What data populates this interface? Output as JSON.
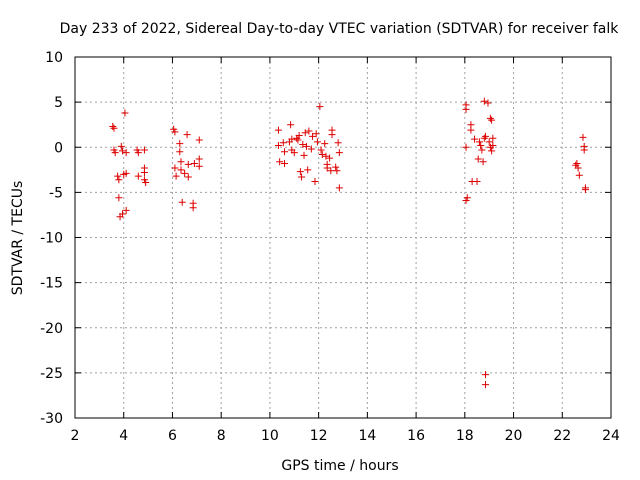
{
  "chart_data": {
    "type": "scatter",
    "title": "Day 233 of 2022, Sidereal Day-to-day VTEC variation (SDTVAR) for receiver falk",
    "xlabel": "GPS time / hours",
    "ylabel": "SDTVAR / TECUs",
    "xlim": [
      2,
      24
    ],
    "ylim": [
      -30,
      10
    ],
    "xticks": [
      2,
      4,
      6,
      8,
      10,
      12,
      14,
      16,
      18,
      20,
      22,
      24
    ],
    "yticks": [
      10,
      5,
      0,
      -5,
      -10,
      -15,
      -20,
      -25,
      -30
    ],
    "grid": true,
    "marker": "+",
    "color": "#dd0000",
    "series": [
      {
        "name": "SDTVAR",
        "points": [
          [
            3.55,
            2.3
          ],
          [
            3.6,
            2.1
          ],
          [
            3.6,
            -0.3
          ],
          [
            3.65,
            -0.6
          ],
          [
            3.75,
            -3.2
          ],
          [
            3.8,
            -3.6
          ],
          [
            3.8,
            -5.6
          ],
          [
            3.85,
            -7.7
          ],
          [
            3.9,
            0.1
          ],
          [
            3.95,
            -0.4
          ],
          [
            3.95,
            -7.4
          ],
          [
            4.0,
            -3.0
          ],
          [
            4.05,
            3.8
          ],
          [
            4.1,
            -2.9
          ],
          [
            4.1,
            -7.0
          ],
          [
            4.1,
            -0.6
          ],
          [
            4.55,
            -0.3
          ],
          [
            4.6,
            -3.2
          ],
          [
            4.6,
            -0.6
          ],
          [
            4.85,
            -0.3
          ],
          [
            4.85,
            -2.3
          ],
          [
            4.85,
            -2.8
          ],
          [
            4.85,
            -3.6
          ],
          [
            4.9,
            -3.9
          ],
          [
            6.05,
            2.0
          ],
          [
            6.1,
            1.7
          ],
          [
            6.1,
            -2.3
          ],
          [
            6.15,
            -3.2
          ],
          [
            6.3,
            0.4
          ],
          [
            6.3,
            -0.5
          ],
          [
            6.35,
            -1.6
          ],
          [
            6.35,
            -2.5
          ],
          [
            6.4,
            -6.1
          ],
          [
            6.5,
            -2.9
          ],
          [
            6.6,
            1.4
          ],
          [
            6.65,
            -1.9
          ],
          [
            6.65,
            -3.3
          ],
          [
            6.85,
            -6.2
          ],
          [
            6.85,
            -6.7
          ],
          [
            6.9,
            -1.8
          ],
          [
            7.1,
            0.8
          ],
          [
            7.1,
            -1.3
          ],
          [
            7.1,
            -2.1
          ],
          [
            10.35,
            1.9
          ],
          [
            10.35,
            0.2
          ],
          [
            10.4,
            -1.6
          ],
          [
            10.55,
            0.5
          ],
          [
            10.6,
            -0.5
          ],
          [
            10.6,
            -1.8
          ],
          [
            10.8,
            0.6
          ],
          [
            10.85,
            2.5
          ],
          [
            10.9,
            -0.3
          ],
          [
            10.9,
            0.9
          ],
          [
            11.0,
            -0.6
          ],
          [
            11.1,
            1.0
          ],
          [
            11.15,
            0.8
          ],
          [
            11.2,
            1.3
          ],
          [
            11.25,
            -2.7
          ],
          [
            11.3,
            -3.3
          ],
          [
            11.35,
            0.3
          ],
          [
            11.4,
            -0.9
          ],
          [
            11.45,
            1.6
          ],
          [
            11.5,
            0.1
          ],
          [
            11.55,
            -2.5
          ],
          [
            11.6,
            1.8
          ],
          [
            11.7,
            -0.2
          ],
          [
            11.75,
            1.2
          ],
          [
            11.85,
            -3.8
          ],
          [
            11.9,
            1.5
          ],
          [
            11.95,
            0.6
          ],
          [
            12.05,
            4.5
          ],
          [
            12.1,
            -0.3
          ],
          [
            12.15,
            -0.8
          ],
          [
            12.25,
            0.4
          ],
          [
            12.3,
            -1.0
          ],
          [
            12.35,
            -1.9
          ],
          [
            12.35,
            -2.3
          ],
          [
            12.45,
            -1.2
          ],
          [
            12.5,
            -2.6
          ],
          [
            12.55,
            1.9
          ],
          [
            12.55,
            1.4
          ],
          [
            12.7,
            -2.2
          ],
          [
            12.75,
            -2.6
          ],
          [
            12.8,
            0.5
          ],
          [
            12.85,
            -0.6
          ],
          [
            12.85,
            -4.5
          ],
          [
            18.05,
            4.7
          ],
          [
            18.05,
            4.2
          ],
          [
            18.05,
            0.0
          ],
          [
            18.05,
            -5.9
          ],
          [
            18.1,
            -5.6
          ],
          [
            18.25,
            2.5
          ],
          [
            18.25,
            1.9
          ],
          [
            18.3,
            -3.8
          ],
          [
            18.4,
            0.9
          ],
          [
            18.5,
            -3.8
          ],
          [
            18.55,
            -1.3
          ],
          [
            18.6,
            0.6
          ],
          [
            18.65,
            0.2
          ],
          [
            18.7,
            -0.3
          ],
          [
            18.75,
            -1.6
          ],
          [
            18.8,
            5.1
          ],
          [
            18.8,
            1.0
          ],
          [
            18.85,
            1.2
          ],
          [
            18.85,
            -25.2
          ],
          [
            18.85,
            -26.3
          ],
          [
            18.95,
            4.9
          ],
          [
            19.0,
            0.6
          ],
          [
            19.05,
            3.2
          ],
          [
            19.05,
            0.0
          ],
          [
            19.1,
            3.0
          ],
          [
            19.1,
            -0.4
          ],
          [
            19.15,
            0.2
          ],
          [
            19.15,
            1.0
          ],
          [
            22.55,
            -2.0
          ],
          [
            22.6,
            -1.8
          ],
          [
            22.65,
            -2.3
          ],
          [
            22.7,
            -3.1
          ],
          [
            22.85,
            1.1
          ],
          [
            22.9,
            0.1
          ],
          [
            22.9,
            -0.3
          ],
          [
            22.95,
            -4.5
          ],
          [
            22.95,
            -4.7
          ]
        ]
      }
    ]
  }
}
